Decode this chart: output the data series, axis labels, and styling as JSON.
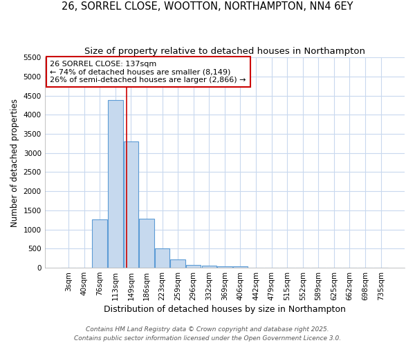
{
  "title1": "26, SORREL CLOSE, WOOTTON, NORTHAMPTON, NN4 6EY",
  "title2": "Size of property relative to detached houses in Northampton",
  "xlabel": "Distribution of detached houses by size in Northampton",
  "ylabel": "Number of detached properties",
  "categories": [
    "3sqm",
    "40sqm",
    "76sqm",
    "113sqm",
    "149sqm",
    "186sqm",
    "223sqm",
    "259sqm",
    "296sqm",
    "332sqm",
    "369sqm",
    "406sqm",
    "442sqm",
    "479sqm",
    "515sqm",
    "552sqm",
    "589sqm",
    "625sqm",
    "662sqm",
    "698sqm",
    "735sqm"
  ],
  "values": [
    0,
    0,
    1270,
    4380,
    3300,
    1280,
    500,
    210,
    80,
    50,
    40,
    30,
    0,
    0,
    0,
    0,
    0,
    0,
    0,
    0,
    0
  ],
  "bar_color": "#c6d9ee",
  "bar_edge_color": "#5b9bd5",
  "grid_color": "#c8d8ee",
  "background_color": "#ffffff",
  "vline_x": 3.73,
  "vline_color": "#cc0000",
  "annotation_text": "26 SORREL CLOSE: 137sqm\n← 74% of detached houses are smaller (8,149)\n26% of semi-detached houses are larger (2,866) →",
  "annotation_box_color": "#ffffff",
  "annotation_box_edge": "#cc0000",
  "ylim": [
    0,
    5500
  ],
  "yticks": [
    0,
    500,
    1000,
    1500,
    2000,
    2500,
    3000,
    3500,
    4000,
    4500,
    5000,
    5500
  ],
  "footer1": "Contains HM Land Registry data © Crown copyright and database right 2025.",
  "footer2": "Contains public sector information licensed under the Open Government Licence 3.0.",
  "title1_fontsize": 10.5,
  "title2_fontsize": 9.5,
  "xlabel_fontsize": 9,
  "ylabel_fontsize": 8.5,
  "tick_fontsize": 7.5,
  "annotation_fontsize": 8,
  "footer_fontsize": 6.5
}
